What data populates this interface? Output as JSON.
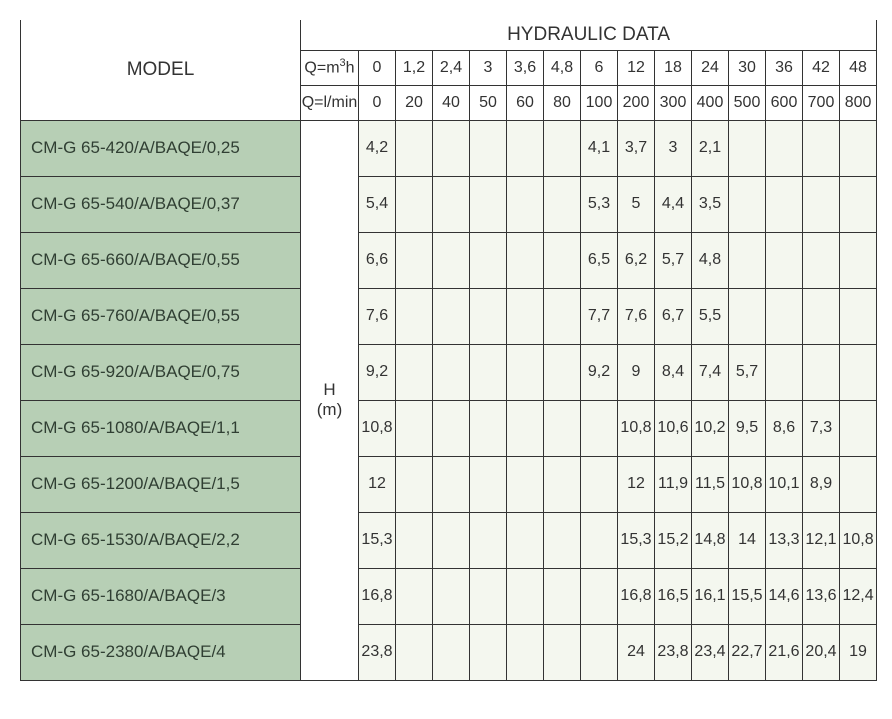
{
  "table": {
    "type": "table",
    "background_color": "#ffffff",
    "grid_color": "#333333",
    "header_bg": "#ffffff",
    "model_cell_bg": "#b7cfb5",
    "data_cell_bg": "#f4f7ef",
    "model_text_color": "#303f33",
    "header_text_color": "#333333",
    "data_text_color": "#333333",
    "title_fontsize": 19,
    "label_fontsize": 16,
    "data_fontsize": 16,
    "model_fontsize": 17,
    "model_header": "MODEL",
    "hydraulic_header": "HYDRAULIC DATA",
    "h_m_label_line1": "H",
    "h_m_label_line2": "(m)",
    "q_row1_label": "Q=m³h",
    "q_row1_values": [
      "0",
      "1,2",
      "2,4",
      "3",
      "3,6",
      "4,8",
      "6",
      "12",
      "18",
      "24",
      "30",
      "36",
      "42",
      "48"
    ],
    "q_row2_label": "Q=l/min",
    "q_row2_values": [
      "0",
      "20",
      "40",
      "50",
      "60",
      "80",
      "100",
      "200",
      "300",
      "400",
      "500",
      "600",
      "700",
      "800"
    ],
    "rows": [
      {
        "model": "CM-G 65-420/A/BAQE/0,25",
        "values": [
          "4,2",
          "",
          "",
          "",
          "",
          "",
          "4,1",
          "3,7",
          "3",
          "2,1",
          "",
          "",
          "",
          ""
        ]
      },
      {
        "model": "CM-G 65-540/A/BAQE/0,37",
        "values": [
          "5,4",
          "",
          "",
          "",
          "",
          "",
          "5,3",
          "5",
          "4,4",
          "3,5",
          "",
          "",
          "",
          ""
        ]
      },
      {
        "model": "CM-G 65-660/A/BAQE/0,55",
        "values": [
          "6,6",
          "",
          "",
          "",
          "",
          "",
          "6,5",
          "6,2",
          "5,7",
          "4,8",
          "",
          "",
          "",
          ""
        ]
      },
      {
        "model": "CM-G 65-760/A/BAQE/0,55",
        "values": [
          "7,6",
          "",
          "",
          "",
          "",
          "",
          "7,7",
          "7,6",
          "6,7",
          "5,5",
          "",
          "",
          "",
          ""
        ]
      },
      {
        "model": "CM-G 65-920/A/BAQE/0,75",
        "values": [
          "9,2",
          "",
          "",
          "",
          "",
          "",
          "9,2",
          "9",
          "8,4",
          "7,4",
          "5,7",
          "",
          "",
          ""
        ]
      },
      {
        "model": "CM-G 65-1080/A/BAQE/1,1",
        "values": [
          "10,8",
          "",
          "",
          "",
          "",
          "",
          "",
          "10,8",
          "10,6",
          "10,2",
          "9,5",
          "8,6",
          "7,3",
          ""
        ]
      },
      {
        "model": "CM-G 65-1200/A/BAQE/1,5",
        "values": [
          "12",
          "",
          "",
          "",
          "",
          "",
          "",
          "12",
          "11,9",
          "11,5",
          "10,8",
          "10,1",
          "8,9",
          ""
        ]
      },
      {
        "model": "CM-G 65-1530/A/BAQE/2,2",
        "values": [
          "15,3",
          "",
          "",
          "",
          "",
          "",
          "",
          "15,3",
          "15,2",
          "14,8",
          "14",
          "13,3",
          "12,1",
          "10,8"
        ]
      },
      {
        "model": "CM-G 65-1680/A/BAQE/3",
        "values": [
          "16,8",
          "",
          "",
          "",
          "",
          "",
          "",
          "16,8",
          "16,5",
          "16,1",
          "15,5",
          "14,6",
          "13,6",
          "12,4"
        ]
      },
      {
        "model": "CM-G 65-2380/A/BAQE/4",
        "values": [
          "23,8",
          "",
          "",
          "",
          "",
          "",
          "",
          "24",
          "23,8",
          "23,4",
          "22,7",
          "21,6",
          "20,4",
          "19"
        ]
      }
    ]
  }
}
